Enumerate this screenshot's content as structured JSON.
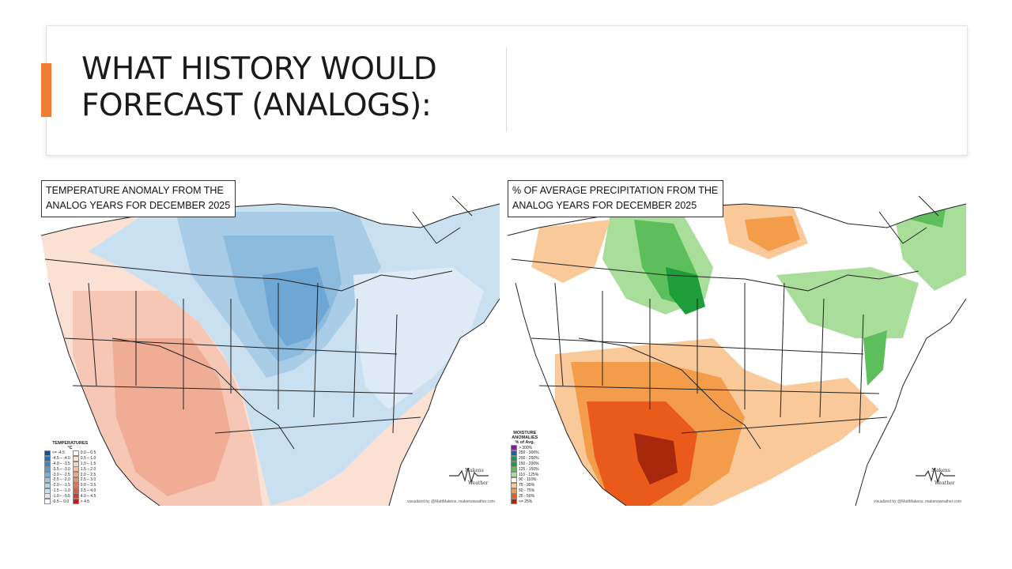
{
  "slide": {
    "title_line1": "WHAT HISTORY WOULD",
    "title_line2": "FORECAST (ANALOGS):",
    "accent_color": "#ed7d31"
  },
  "maps": {
    "temperature": {
      "label_line1": "TEMPERATURE ANOMALY FROM THE",
      "label_line2": "ANALOG YEARS FOR DECEMBER 2025",
      "legend_title_line1": "TEMPERATURES",
      "legend_title_line2": "°C",
      "legend_items": [
        {
          "label": "<= -4.5",
          "color": "#08519c"
        },
        {
          "label": "-4.5 – -4.0",
          "color": "#2171b5"
        },
        {
          "label": "-4.0 – -3.5",
          "color": "#3a86c2"
        },
        {
          "label": "-3.5 – -3.0",
          "color": "#5a9ccf"
        },
        {
          "label": "-3.0 – -2.5",
          "color": "#7bb1d9"
        },
        {
          "label": "-2.5 – -2.0",
          "color": "#9cc5e2"
        },
        {
          "label": "-2.0 – -1.5",
          "color": "#b3d3ea"
        },
        {
          "label": "-1.5 – -1.0",
          "color": "#c9e0f0"
        },
        {
          "label": "-1.0 – -0.5",
          "color": "#deebf6"
        },
        {
          "label": "-0.5 – 0.0",
          "color": "#ffffff"
        },
        {
          "label": "0.0 – 0.5",
          "color": "#ffffff"
        },
        {
          "label": "0.5 – 1.0",
          "color": "#fbe4da"
        },
        {
          "label": "1.0 – 1.5",
          "color": "#f8d2c2"
        },
        {
          "label": "1.5 – 2.0",
          "color": "#f4bfa9"
        },
        {
          "label": "2.0 – 2.5",
          "color": "#efa88d"
        },
        {
          "label": "2.5 – 3.0",
          "color": "#ea9074"
        },
        {
          "label": "3.0 – 3.5",
          "color": "#e4765c"
        },
        {
          "label": "3.5 – 4.0",
          "color": "#dd5a44"
        },
        {
          "label": "4.0 – 4.5",
          "color": "#d23b2d"
        },
        {
          "label": "> 4.5",
          "color": "#c21a1a"
        }
      ],
      "credit": "visualized by @MattMakens, makensweather.com",
      "logo_text_top": "Makens",
      "logo_text_bottom": "Weather"
    },
    "precipitation": {
      "label_line1": "% OF AVERAGE PRECIPITATION FROM THE",
      "label_line2": "ANALOG YEARS FOR DECEMBER 2025",
      "legend_title_line1": "MOISTURE",
      "legend_title_line2": "ANOMALIES",
      "legend_title_line3": "% of Avg.",
      "legend_items": [
        {
          "label": "> 300%",
          "color": "#7b1fa2"
        },
        {
          "label": "250 - 300%",
          "color": "#1e5fa8"
        },
        {
          "label": "200 - 250%",
          "color": "#2e8b57"
        },
        {
          "label": "150 - 200%",
          "color": "#1e9e3a"
        },
        {
          "label": "125 - 150%",
          "color": "#5cbf5c"
        },
        {
          "label": "110 - 125%",
          "color": "#a8dd9a"
        },
        {
          "label": "90 - 110%",
          "color": "#ffffff"
        },
        {
          "label": "75 - 90%",
          "color": "#f9c99a"
        },
        {
          "label": "50 - 75%",
          "color": "#f39c4a"
        },
        {
          "label": "25 - 50%",
          "color": "#ea5a1a"
        },
        {
          "label": "<= 25%",
          "color": "#a8280d"
        }
      ],
      "credit": "visualized by @MattMakens, makensweather.com",
      "logo_text_top": "Makens",
      "logo_text_bottom": "Weather"
    }
  }
}
